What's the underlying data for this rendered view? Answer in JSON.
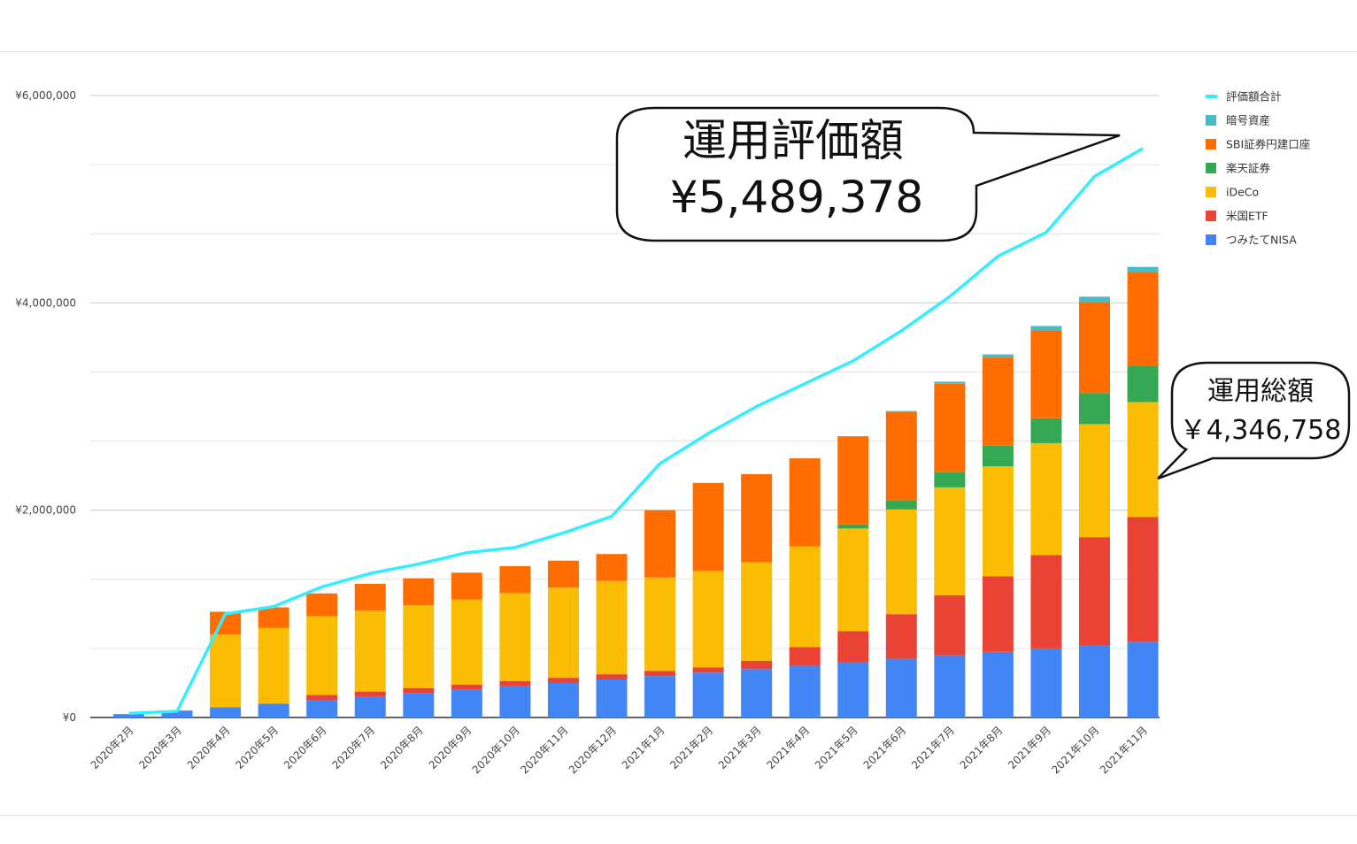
{
  "chart_data": {
    "type": "bar",
    "stacked": true,
    "categories": [
      "2020年2月",
      "2020年3月",
      "2020年4月",
      "2020年5月",
      "2020年6月",
      "2020年7月",
      "2020年8月",
      "2020年9月",
      "2020年10月",
      "2020年11月",
      "2020年12月",
      "2021年1月",
      "2021年2月",
      "2021年3月",
      "2021年4月",
      "2021年5月",
      "2021年6月",
      "2021年7月",
      "2021年8月",
      "2021年9月",
      "2021年10月",
      "2021年11月"
    ],
    "ylim": [
      0,
      6000000
    ],
    "yticks": [
      "¥0",
      "¥2,000,000",
      "¥4,000,000",
      "¥6,000,000"
    ],
    "ytick_values": [
      0,
      2000000,
      4000000,
      6000000
    ],
    "grid": true,
    "legend_position": "right",
    "series": [
      {
        "name": "つみたてNISA",
        "color": "#4285f4",
        "values": [
          33000,
          67000,
          100000,
          133000,
          167000,
          200000,
          233000,
          267000,
          300000,
          333000,
          367000,
          400000,
          433000,
          467000,
          500000,
          533000,
          567000,
          600000,
          633000,
          667000,
          700000,
          733000
        ]
      },
      {
        "name": "米国ETF",
        "color": "#ea4335",
        "values": [
          0,
          0,
          0,
          0,
          50000,
          50000,
          50000,
          50000,
          50000,
          50000,
          50000,
          50000,
          50000,
          80000,
          180000,
          300000,
          430000,
          580000,
          730000,
          900000,
          1040000,
          1200000
        ]
      },
      {
        "name": "iDeCo",
        "color": "#fbbc04",
        "values": [
          0,
          0,
          700000,
          730000,
          760000,
          780000,
          800000,
          820000,
          850000,
          870000,
          900000,
          900000,
          930000,
          950000,
          970000,
          990000,
          1010000,
          1040000,
          1060000,
          1080000,
          1090000,
          1110000
        ]
      },
      {
        "name": "楽天証券",
        "color": "#34a853",
        "values": [
          0,
          0,
          0,
          0,
          0,
          0,
          0,
          0,
          0,
          0,
          0,
          0,
          0,
          0,
          0,
          40000,
          90000,
          150000,
          200000,
          240000,
          300000,
          350000
        ]
      },
      {
        "name": "SBI証券円建口座",
        "color": "#ff6d01",
        "values": [
          0,
          0,
          220000,
          200000,
          220000,
          260000,
          260000,
          260000,
          260000,
          260000,
          260000,
          650000,
          850000,
          850000,
          850000,
          850000,
          850000,
          850000,
          850000,
          850000,
          880000,
          900000
        ]
      },
      {
        "name": "暗号資産",
        "color": "#46bdc6",
        "values": [
          0,
          0,
          0,
          0,
          0,
          0,
          0,
          0,
          0,
          0,
          0,
          0,
          0,
          0,
          0,
          0,
          10000,
          20000,
          30000,
          40000,
          50000,
          53758
        ]
      }
    ],
    "line_series": {
      "name": "評価額合計",
      "color": "#33eeff",
      "values": [
        40000,
        60000,
        1000000,
        1070000,
        1260000,
        1390000,
        1480000,
        1590000,
        1640000,
        1780000,
        1940000,
        2450000,
        2740000,
        3000000,
        3220000,
        3440000,
        3730000,
        4060000,
        4450000,
        4680000,
        5220000,
        5489378
      ]
    },
    "legend_order": [
      "評価額合計",
      "暗号資産",
      "SBI証券円建口座",
      "楽天証券",
      "iDeCo",
      "米国ETF",
      "つみたてNISA"
    ]
  },
  "callouts": {
    "valuation": {
      "title": "運用評価額",
      "value": "¥5,489,378"
    },
    "total": {
      "title": "運用総額",
      "value": "￥4,346,758"
    }
  }
}
